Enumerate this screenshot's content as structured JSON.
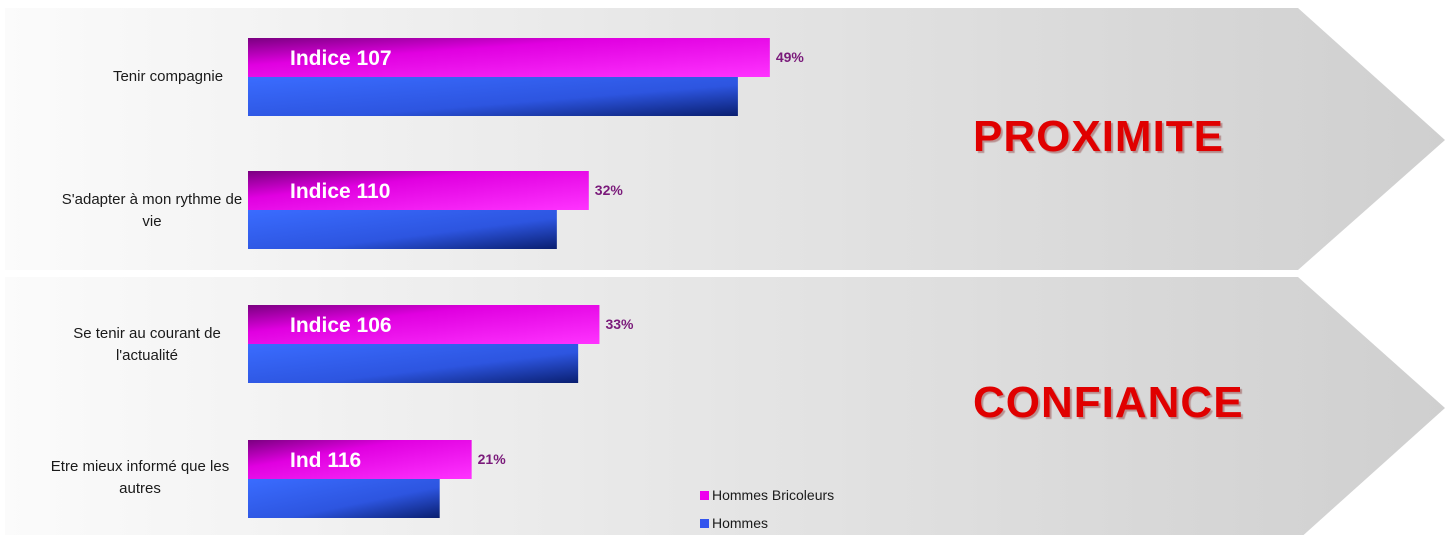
{
  "chart_data": {
    "type": "bar",
    "orientation": "horizontal",
    "categories": [
      "Tenir compagnie",
      "S'adapter à mon rythme de vie",
      "Se tenir au courant de l'actualité",
      "Etre mieux informé que les autres"
    ],
    "series": [
      {
        "name": "Hommes Bricoleurs",
        "values": [
          49,
          32,
          33,
          21
        ],
        "color": "#ee00ee"
      },
      {
        "name": "Hommes",
        "values": [
          46,
          29,
          31,
          18
        ],
        "color": "#3355ee"
      }
    ],
    "value_labels": [
      "49%",
      "32%",
      "33%",
      "21%"
    ],
    "index_labels": [
      "Indice 107",
      "Indice 110",
      "Indice 106",
      "Ind 116"
    ],
    "value_label_color": "#7a1a7a",
    "xlim": [
      0,
      100
    ],
    "grid": false,
    "legend_position": "bottom-right",
    "groups": [
      {
        "label": "PROXIMITE",
        "color": "#e00000"
      },
      {
        "label": "CONFIANCE",
        "color": "#e00000"
      }
    ]
  }
}
